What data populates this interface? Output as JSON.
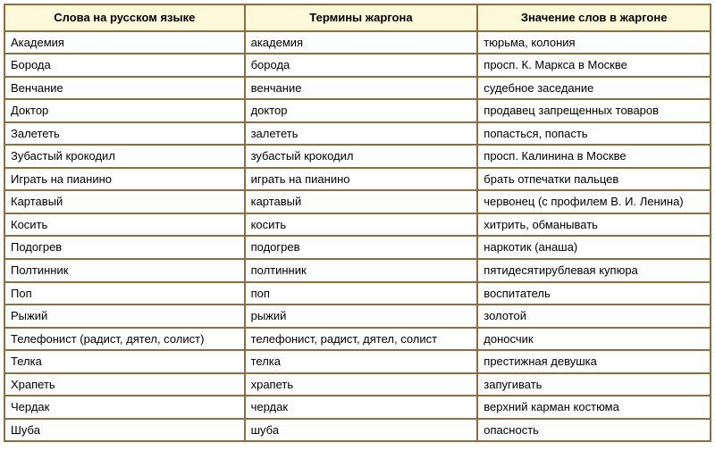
{
  "table": {
    "header_bg": "#fdf8d8",
    "border_color": "#8b6f3e",
    "font_size": 13,
    "columns": [
      {
        "label": "Слова на русском языке",
        "align": "center"
      },
      {
        "label": "Термины жаргона",
        "align": "center"
      },
      {
        "label": "Значение слов в жаргоне",
        "align": "center"
      }
    ],
    "rows": [
      [
        "Академия",
        "академия",
        "тюрьма, колония"
      ],
      [
        "Борода",
        "борода",
        "просп. К. Маркса в Москве"
      ],
      [
        "Венчание",
        "венчание",
        "судебное заседание"
      ],
      [
        "Доктор",
        "доктор",
        "продавец запрещенных товаров"
      ],
      [
        "Залететь",
        "залететь",
        "попасться, попасть"
      ],
      [
        "Зубастый крокодил",
        "зубастый крокодил",
        "просп. Калинина в Москве"
      ],
      [
        "Играть на пианино",
        "играть на пианино",
        "брать отпечатки пальцев"
      ],
      [
        "Картавый",
        "картавый",
        "червонец (с профилем В. И. Ленина)"
      ],
      [
        "Косить",
        "косить",
        "хитрить, обманывать"
      ],
      [
        "Подогрев",
        "подогрев",
        "наркотик (анаша)"
      ],
      [
        "Полтинник",
        "полтинник",
        "пятидесятирублевая купюра"
      ],
      [
        "Поп",
        "поп",
        "воспитатель"
      ],
      [
        "Рыжий",
        "рыжий",
        "золотой"
      ],
      [
        "Телефонист (радист, дятел, солист)",
        "телефонист, радист, дятел, солист",
        "доносчик"
      ],
      [
        "Телка",
        "телка",
        "престижная девушка"
      ],
      [
        "Храпеть",
        "храпеть",
        "запугивать"
      ],
      [
        "Чердак",
        "чердак",
        "верхний карман костюма"
      ],
      [
        "Шуба",
        "шуба",
        "опасность"
      ]
    ]
  }
}
